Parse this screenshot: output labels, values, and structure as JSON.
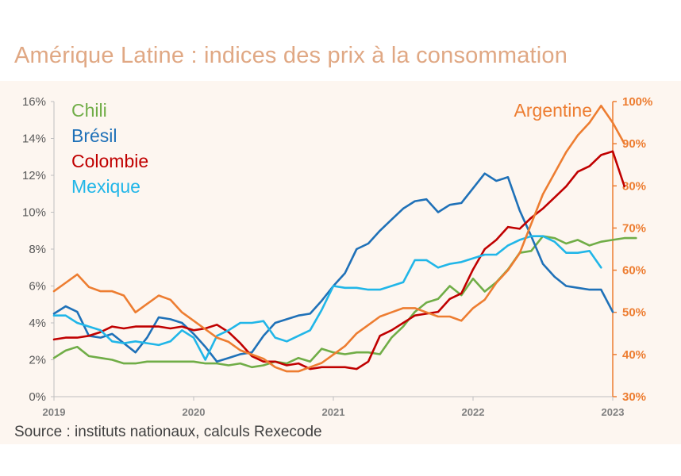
{
  "page": {
    "title": "Amérique Latine : indices des prix à la consommation",
    "source": "Source : instituts nationaux, calculs Rexecode",
    "colors": {
      "title": "#e0a884",
      "panel_background": "#fdf6f0",
      "axis_right": "#ed7d31",
      "axis_left": "#595959"
    }
  },
  "chart_data": {
    "type": "line",
    "title": "Amérique Latine : indices des prix à la consommation",
    "x_ticks": [
      "2019",
      "2020",
      "2021",
      "2022",
      "2023"
    ],
    "x_start": "2019-01",
    "frequency": "monthly",
    "y_left": {
      "range": [
        0,
        16
      ],
      "ticks": [
        "0%",
        "2%",
        "4%",
        "6%",
        "8%",
        "10%",
        "12%",
        "14%",
        "16%"
      ]
    },
    "y_right": {
      "range": [
        30,
        100
      ],
      "ticks": [
        "30%",
        "40%",
        "50%",
        "60%",
        "70%",
        "80%",
        "90%",
        "100%"
      ]
    },
    "grid": false,
    "series": [
      {
        "name": "Chili",
        "color": "#70ad47",
        "axis": "left",
        "values": [
          2.1,
          2.5,
          2.7,
          2.2,
          2.1,
          2.0,
          1.8,
          1.8,
          1.9,
          1.9,
          1.9,
          1.9,
          1.9,
          1.8,
          1.8,
          1.7,
          1.8,
          1.6,
          1.7,
          1.9,
          1.8,
          2.1,
          1.9,
          2.6,
          2.4,
          2.3,
          2.4,
          2.4,
          2.3,
          3.2,
          3.8,
          4.6,
          5.1,
          5.3,
          6.0,
          5.5,
          6.4,
          5.7,
          6.2,
          6.9,
          7.8,
          7.9,
          8.7,
          8.6,
          8.3,
          8.5,
          8.2,
          8.4,
          8.5,
          8.6,
          8.6
        ]
      },
      {
        "name": "Brésil",
        "color": "#1f71b8",
        "axis": "left",
        "values": [
          4.5,
          4.9,
          4.6,
          3.3,
          3.2,
          3.4,
          2.9,
          2.4,
          3.2,
          4.3,
          4.2,
          4.0,
          3.4,
          2.7,
          1.9,
          2.1,
          2.3,
          2.4,
          3.3,
          4.0,
          4.2,
          4.4,
          4.5,
          5.2,
          6.0,
          6.7,
          8.0,
          8.3,
          9.0,
          9.6,
          10.2,
          10.6,
          10.7,
          10.0,
          10.4,
          10.5,
          11.3,
          12.1,
          11.7,
          11.9,
          10.1,
          8.7,
          7.2,
          6.5,
          6.0,
          5.9,
          5.8,
          5.8,
          4.6
        ]
      },
      {
        "name": "Colombie",
        "color": "#c00000",
        "axis": "left",
        "values": [
          3.1,
          3.2,
          3.2,
          3.3,
          3.5,
          3.8,
          3.7,
          3.8,
          3.8,
          3.8,
          3.7,
          3.8,
          3.6,
          3.7,
          3.9,
          3.5,
          2.9,
          2.2,
          1.9,
          1.9,
          1.7,
          1.8,
          1.5,
          1.6,
          1.6,
          1.6,
          1.5,
          1.9,
          3.3,
          3.6,
          4.0,
          4.4,
          4.5,
          4.6,
          5.3,
          5.6,
          6.9,
          8.0,
          8.5,
          9.2,
          9.1,
          9.7,
          10.2,
          10.8,
          11.4,
          12.2,
          12.5,
          13.1,
          13.3,
          11.4
        ]
      },
      {
        "name": "Mexique",
        "color": "#21b6e8",
        "axis": "left",
        "values": [
          4.4,
          4.4,
          4.0,
          3.8,
          3.6,
          3.0,
          2.9,
          3.0,
          2.9,
          2.8,
          3.0,
          3.6,
          3.2,
          2.0,
          3.3,
          3.6,
          4.0,
          4.0,
          4.1,
          3.2,
          3.0,
          3.3,
          3.6,
          4.7,
          6.0,
          5.9,
          5.9,
          5.8,
          5.8,
          6.0,
          6.2,
          7.4,
          7.4,
          7.0,
          7.2,
          7.3,
          7.5,
          7.7,
          7.7,
          8.2,
          8.5,
          8.7,
          8.7,
          8.4,
          7.8,
          7.8,
          7.9,
          7.0
        ]
      },
      {
        "name": "Argentine",
        "color": "#ed7d31",
        "axis": "right",
        "values": [
          55,
          57,
          59,
          56,
          55,
          55,
          54,
          50,
          52,
          54,
          53,
          50,
          48,
          46,
          44,
          43,
          41,
          40,
          39,
          37,
          36,
          36,
          37,
          38,
          40,
          42,
          45,
          47,
          49,
          50,
          51,
          51,
          50,
          49,
          49,
          48,
          51,
          53,
          57,
          60,
          64,
          71,
          78,
          83,
          88,
          92,
          95,
          99,
          95,
          90
        ]
      }
    ],
    "legend": {
      "placement": "top-left",
      "entries": [
        "Chili",
        "Brésil",
        "Colombie",
        "Mexique"
      ]
    },
    "annotations": [
      {
        "text": "Argentine",
        "placement": "top-right"
      }
    ]
  }
}
